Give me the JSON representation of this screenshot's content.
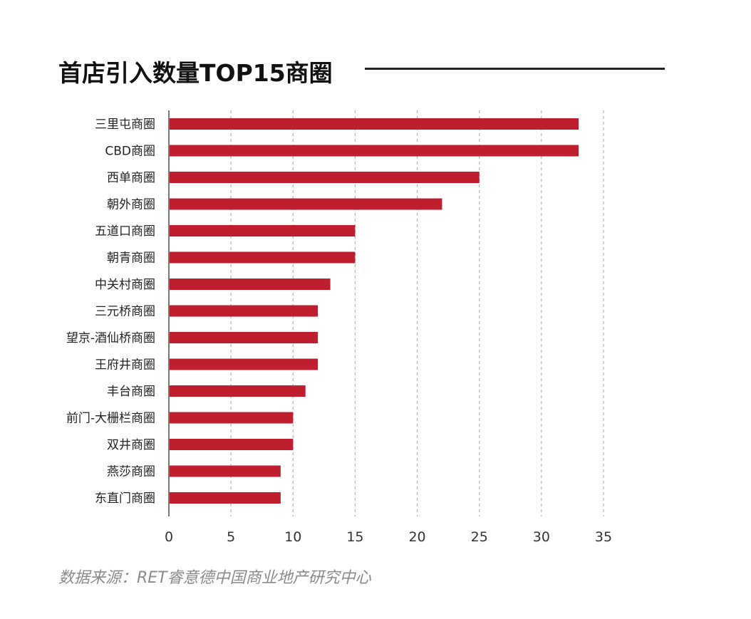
{
  "title": "首店引入数量TOP15商圈",
  "source": "数据来源：RET睿意德中国商业地产研究中心",
  "colors": {
    "bar": "#be1e2d",
    "grid": "#b5b5b5",
    "axis": "#777777"
  },
  "chart_data": {
    "type": "bar",
    "orientation": "horizontal",
    "title": "首店引入数量TOP15商圈",
    "categories": [
      "三里屯商圈",
      "CBD商圈",
      "西单商圈",
      "朝外商圈",
      "五道口商圈",
      "朝青商圈",
      "中关村商圈",
      "三元桥商圈",
      "望京-酒仙桥商圈",
      "王府井商圈",
      "丰台商圈",
      "前门-大栅栏商圈",
      "双井商圈",
      "燕莎商圈",
      "东直门商圈"
    ],
    "values": [
      33,
      33,
      25,
      22,
      15,
      15,
      13,
      12,
      12,
      12,
      11,
      10,
      10,
      9,
      9
    ],
    "xlim": [
      0,
      35
    ],
    "xticks": [
      "0",
      "5",
      "10",
      "15",
      "20",
      "25",
      "30",
      "35"
    ],
    "grid": "vertical dashed",
    "legend": "none"
  }
}
